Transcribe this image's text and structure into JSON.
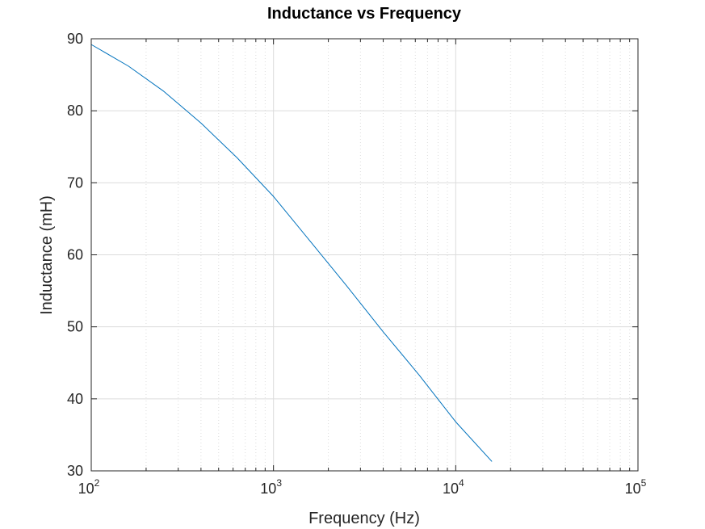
{
  "chart_data": {
    "type": "line",
    "title": "Inductance vs Frequency",
    "xlabel": "Frequency (Hz)",
    "ylabel": "Inductance (mH)",
    "x_scale": "log",
    "xlim": [
      100,
      100000
    ],
    "ylim": [
      30,
      90
    ],
    "x_ticks": [
      {
        "base": "10",
        "exp": "2"
      },
      {
        "base": "10",
        "exp": "3"
      },
      {
        "base": "10",
        "exp": "4"
      },
      {
        "base": "10",
        "exp": "5"
      }
    ],
    "y_ticks": [
      "30",
      "40",
      "50",
      "60",
      "70",
      "80",
      "90"
    ],
    "grid": true,
    "series": [
      {
        "color": "#0072BD",
        "x": [
          100,
          160,
          250,
          400,
          630,
          1000,
          1600,
          2500,
          4000,
          6300,
          10000,
          15800
        ],
        "y": [
          89.2,
          86.2,
          82.7,
          78.3,
          73.5,
          68.1,
          61.8,
          55.8,
          49.3,
          43.3,
          36.8,
          31.3
        ]
      }
    ]
  }
}
